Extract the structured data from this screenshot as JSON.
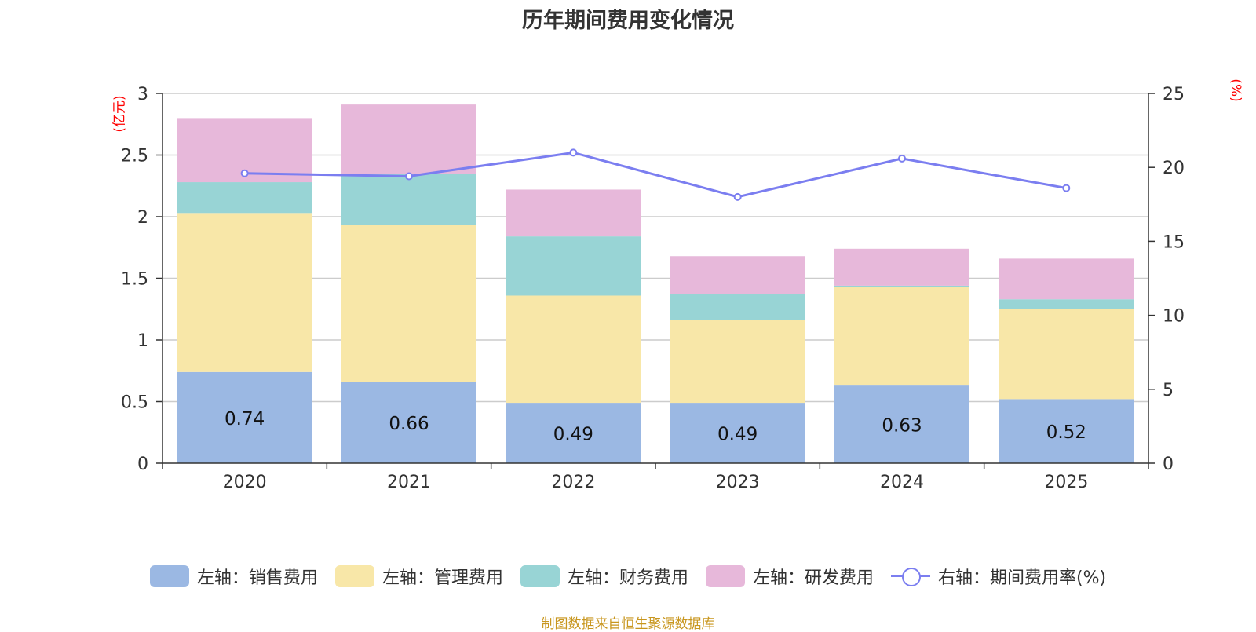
{
  "chart_data": {
    "type": "bar",
    "title": "历年期间费用变化情况",
    "categories": [
      "2020",
      "2021",
      "2022",
      "2023",
      "2024",
      "2025"
    ],
    "left_axis": {
      "unit": "(亿元)",
      "range": [
        0,
        3
      ],
      "ticks": [
        "0",
        "0.5",
        "1",
        "1.5",
        "2",
        "2.5",
        "3"
      ]
    },
    "right_axis": {
      "unit": "(%)",
      "range": [
        0,
        25
      ],
      "ticks": [
        "0",
        "5",
        "10",
        "15",
        "20",
        "25"
      ]
    },
    "series": [
      {
        "name": "左轴：销售费用",
        "kind": "bar",
        "axis": "left",
        "color": "#9bb8e3",
        "values": [
          0.74,
          0.66,
          0.49,
          0.49,
          0.63,
          0.52
        ],
        "labels": [
          "0.74",
          "0.66",
          "0.49",
          "0.49",
          "0.63",
          "0.52"
        ]
      },
      {
        "name": "左轴：管理费用",
        "kind": "bar",
        "axis": "left",
        "color": "#f8e7a8",
        "values": [
          1.29,
          1.27,
          0.87,
          0.67,
          0.8,
          0.73
        ]
      },
      {
        "name": "左轴：财务费用",
        "kind": "bar",
        "axis": "left",
        "color": "#98d4d5",
        "values": [
          0.25,
          0.42,
          0.48,
          0.21,
          0.01,
          0.08
        ]
      },
      {
        "name": "左轴：研发费用",
        "kind": "bar",
        "axis": "left",
        "color": "#e7b8da",
        "values": [
          0.52,
          0.56,
          0.38,
          0.31,
          0.3,
          0.33
        ]
      },
      {
        "name": "右轴：期间费用率(%)",
        "kind": "line",
        "axis": "right",
        "color": "#7b7ef0",
        "values": [
          19.6,
          19.4,
          21.0,
          18.0,
          20.6,
          18.6
        ]
      }
    ],
    "grid": true,
    "legend_position": "bottom",
    "source": "制图数据来自恒生聚源数据库"
  }
}
